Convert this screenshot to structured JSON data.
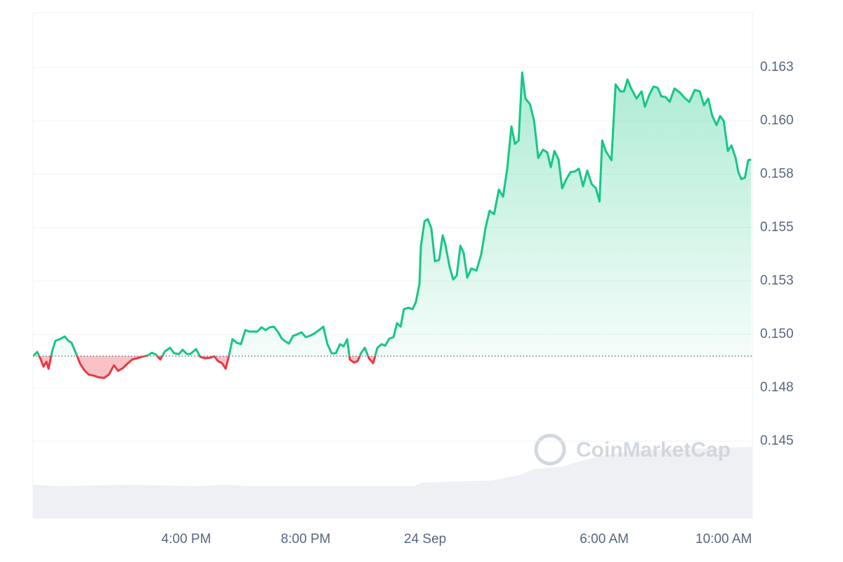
{
  "chart_data": {
    "type": "line",
    "watermark": "CoinMarketCap",
    "up_color": "#16c784",
    "down_color": "#ea3943",
    "baseline": 0.14898,
    "grid": true,
    "xlim": [
      10.87,
      34.96
    ],
    "ylim": [
      0.14141,
      0.16507
    ],
    "xticks": [
      {
        "value": 16,
        "label": "4:00 PM"
      },
      {
        "value": 20,
        "label": "8:00 PM"
      },
      {
        "value": 24,
        "label": "24 Sep"
      },
      {
        "value": 30,
        "label": "6:00 AM"
      },
      {
        "value": 34,
        "label": "10:00 AM"
      }
    ],
    "yticks": [
      {
        "value": 0.145,
        "label": "0.145"
      },
      {
        "value": 0.1475,
        "label": "0.148"
      },
      {
        "value": 0.15,
        "label": "0.150"
      },
      {
        "value": 0.1525,
        "label": "0.153"
      },
      {
        "value": 0.155,
        "label": "0.155"
      },
      {
        "value": 0.1575,
        "label": "0.158"
      },
      {
        "value": 0.16,
        "label": "0.160"
      },
      {
        "value": 0.1625,
        "label": "0.163"
      }
    ],
    "x": [
      10.87,
      11.01,
      11.13,
      11.22,
      11.32,
      11.39,
      11.51,
      11.62,
      11.76,
      11.93,
      12.05,
      12.16,
      12.31,
      12.45,
      12.59,
      12.73,
      12.92,
      13.06,
      13.25,
      13.41,
      13.58,
      13.72,
      13.88,
      14.05,
      14.19,
      14.35,
      14.52,
      14.71,
      14.85,
      14.99,
      15.13,
      15.29,
      15.46,
      15.6,
      15.76,
      15.88,
      16.02,
      16.14,
      16.33,
      16.47,
      16.63,
      16.82,
      16.94,
      17.06,
      17.2,
      17.32,
      17.44,
      17.55,
      17.69,
      17.83,
      17.98,
      18.12,
      18.23,
      18.38,
      18.52,
      18.66,
      18.8,
      18.94,
      19.08,
      19.2,
      19.32,
      19.44,
      19.58,
      19.72,
      19.86,
      20.0,
      20.14,
      20.28,
      20.45,
      20.59,
      20.73,
      20.87,
      21.01,
      21.15,
      21.27,
      21.39,
      21.48,
      21.62,
      21.74,
      21.86,
      21.98,
      22.12,
      22.26,
      22.4,
      22.54,
      22.66,
      22.8,
      22.94,
      23.06,
      23.18,
      23.29,
      23.44,
      23.58,
      23.69,
      23.81,
      23.86,
      23.98,
      24.09,
      24.21,
      24.33,
      24.47,
      24.59,
      24.68,
      24.82,
      24.94,
      25.06,
      25.18,
      25.29,
      25.41,
      25.55,
      25.72,
      25.88,
      26.02,
      26.16,
      26.31,
      26.47,
      26.61,
      26.75,
      26.89,
      27.01,
      27.13,
      27.25,
      27.36,
      27.51,
      27.65,
      27.79,
      27.95,
      28.09,
      28.21,
      28.33,
      28.47,
      28.59,
      28.73,
      28.87,
      29.01,
      29.15,
      29.29,
      29.43,
      29.58,
      29.72,
      29.84,
      29.93,
      30.05,
      30.24,
      30.38,
      30.54,
      30.66,
      30.78,
      30.89,
      31.08,
      31.25,
      31.36,
      31.51,
      31.65,
      31.79,
      31.91,
      32.05,
      32.19,
      32.35,
      32.54,
      32.71,
      32.85,
      33.03,
      33.2,
      33.34,
      33.48,
      33.62,
      33.76,
      33.88,
      34.0,
      34.14,
      34.26,
      34.4,
      34.49,
      34.59,
      34.71,
      34.82,
      34.92
    ],
    "values": [
      0.14898,
      0.14918,
      0.14882,
      0.14849,
      0.14872,
      0.14839,
      0.14921,
      0.1497,
      0.14977,
      0.1499,
      0.1497,
      0.14961,
      0.14911,
      0.14862,
      0.14832,
      0.14812,
      0.14806,
      0.14799,
      0.14796,
      0.14812,
      0.14855,
      0.14829,
      0.14842,
      0.14865,
      0.14882,
      0.14888,
      0.14895,
      0.14901,
      0.14914,
      0.14905,
      0.14882,
      0.14921,
      0.14937,
      0.14911,
      0.14908,
      0.14928,
      0.14908,
      0.14908,
      0.14931,
      0.14895,
      0.14888,
      0.14891,
      0.14898,
      0.14875,
      0.14865,
      0.14839,
      0.14905,
      0.14977,
      0.14961,
      0.14954,
      0.1502,
      0.15013,
      0.15013,
      0.15013,
      0.15033,
      0.1502,
      0.15033,
      0.15036,
      0.1501,
      0.1498,
      0.14967,
      0.14957,
      0.14993,
      0.15,
      0.1501,
      0.14987,
      0.14993,
      0.15003,
      0.1502,
      0.15036,
      0.14954,
      0.14911,
      0.14911,
      0.14954,
      0.14944,
      0.14977,
      0.14882,
      0.14868,
      0.14875,
      0.14914,
      0.14937,
      0.14888,
      0.14865,
      0.14937,
      0.14954,
      0.14947,
      0.1498,
      0.14987,
      0.15053,
      0.15036,
      0.15118,
      0.15125,
      0.15118,
      0.15151,
      0.15234,
      0.15415,
      0.1553,
      0.1554,
      0.15497,
      0.15342,
      0.15349,
      0.15464,
      0.15421,
      0.15316,
      0.15257,
      0.15276,
      0.15415,
      0.15382,
      0.15266,
      0.15309,
      0.15299,
      0.15375,
      0.15497,
      0.15579,
      0.15563,
      0.15678,
      0.15645,
      0.15776,
      0.15974,
      0.15892,
      0.15908,
      0.16227,
      0.16105,
      0.16079,
      0.16,
      0.15826,
      0.15865,
      0.15852,
      0.15783,
      0.15859,
      0.15819,
      0.15684,
      0.15727,
      0.1576,
      0.15763,
      0.15776,
      0.15694,
      0.15767,
      0.15704,
      0.15684,
      0.15622,
      0.15908,
      0.15859,
      0.15816,
      0.16171,
      0.16138,
      0.16138,
      0.16194,
      0.16155,
      0.16105,
      0.16138,
      0.16066,
      0.16122,
      0.16161,
      0.16155,
      0.16115,
      0.16112,
      0.16089,
      0.16152,
      0.16132,
      0.16105,
      0.16089,
      0.16145,
      0.16138,
      0.16073,
      0.16105,
      0.16023,
      0.1598,
      0.16023,
      0.16,
      0.15859,
      0.15885,
      0.15826,
      0.1576,
      0.15727,
      0.15734,
      0.15816,
      0.15819
    ]
  }
}
